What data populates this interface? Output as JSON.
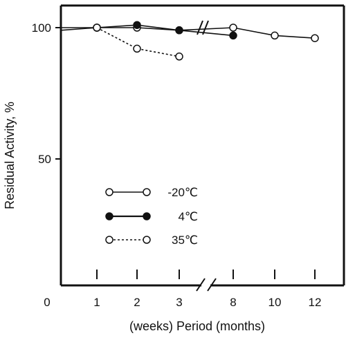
{
  "chart_data": {
    "type": "line",
    "xlabel": "(weeks) Period (months)",
    "ylabel": "Residual Activity, %",
    "ylim": [
      0,
      105
    ],
    "y_ticks": [
      50,
      100
    ],
    "x_ticks": [
      "0",
      "1",
      "2",
      "3",
      "8",
      "10",
      "12"
    ],
    "axis_break": "between 3 weeks and 8 months",
    "legend_placement": "lower-left inside plot",
    "series": [
      {
        "name": "-20℃",
        "marker": "open-circle",
        "line": "solid",
        "points": [
          {
            "x": "0",
            "y": 99
          },
          {
            "x": "1",
            "y": 100
          },
          {
            "x": "2",
            "y": 100
          },
          {
            "x": "3",
            "y": 99
          },
          {
            "x": "8",
            "y": 100
          },
          {
            "x": "10",
            "y": 97
          },
          {
            "x": "12",
            "y": 96
          }
        ]
      },
      {
        "name": "4℃",
        "marker": "filled-circle",
        "line": "solid",
        "points": [
          {
            "x": "0",
            "y": 100
          },
          {
            "x": "1",
            "y": 100
          },
          {
            "x": "2",
            "y": 101
          },
          {
            "x": "3",
            "y": 99
          },
          {
            "x": "8",
            "y": 97
          }
        ]
      },
      {
        "name": "35℃",
        "marker": "open-circle",
        "line": "dotted",
        "points": [
          {
            "x": "1",
            "y": 100
          },
          {
            "x": "2",
            "y": 92
          },
          {
            "x": "3",
            "y": 89
          }
        ]
      }
    ]
  }
}
